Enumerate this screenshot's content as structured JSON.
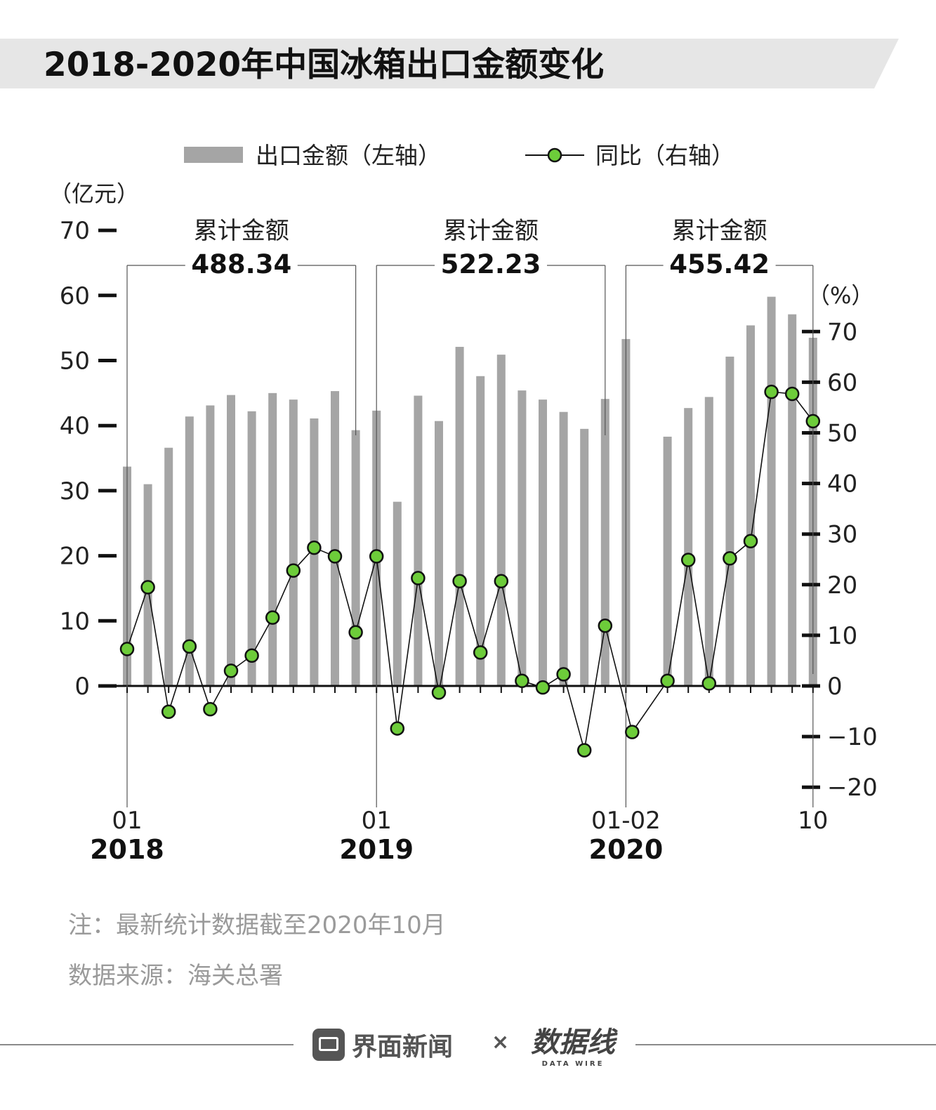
{
  "title": "2018-2020年中国冰箱出口金额变化",
  "colors": {
    "bar": "#a5a5a5",
    "marker": "#6dcc3a",
    "line": "#111111",
    "title_band": "#e6e6e6"
  },
  "legend": {
    "bar_label": "出口金额（左轴）",
    "line_label": "同比（右轴）"
  },
  "chart_data": {
    "type": "bar",
    "title": "2018-2020年中国冰箱出口金额变化",
    "left_axis": {
      "unit_label": "（亿元）",
      "ticks": [
        0,
        10,
        20,
        30,
        40,
        50,
        60,
        70
      ],
      "ylim": [
        0,
        70
      ]
    },
    "right_axis": {
      "unit_label": "（%）",
      "ticks": [
        -20,
        -10,
        0,
        10,
        20,
        30,
        40,
        50,
        60,
        70
      ],
      "ylim": [
        -20,
        70
      ]
    },
    "months": [
      "2018-01",
      "2018-02",
      "2018-03",
      "2018-04",
      "2018-05",
      "2018-06",
      "2018-07",
      "2018-08",
      "2018-09",
      "2018-10",
      "2018-11",
      "2018-12",
      "2019-01",
      "2019-02",
      "2019-03",
      "2019-04",
      "2019-05",
      "2019-06",
      "2019-07",
      "2019-08",
      "2019-09",
      "2019-10",
      "2019-11",
      "2019-12",
      "2020-01",
      "2020-02",
      "2020-03",
      "2020-04",
      "2020-05",
      "2020-06",
      "2020-07",
      "2020-08",
      "2020-09",
      "2020-10"
    ],
    "series": [
      {
        "name": "出口金额",
        "axis": "left",
        "kind": "bar",
        "values": [
          33.7,
          31.0,
          36.6,
          41.4,
          43.1,
          44.7,
          42.2,
          45.0,
          44.0,
          41.1,
          45.3,
          39.3,
          42.3,
          28.3,
          44.6,
          40.7,
          52.1,
          47.6,
          50.9,
          45.4,
          44.0,
          42.1,
          39.5,
          44.1,
          53.3,
          null,
          38.3,
          42.7,
          44.4,
          50.6,
          55.4,
          59.8,
          57.1,
          53.5
        ]
      },
      {
        "name": "同比",
        "axis": "right",
        "kind": "line",
        "values": [
          7.3,
          19.5,
          -5.1,
          7.8,
          -4.6,
          3.0,
          6.0,
          13.5,
          22.8,
          27.3,
          25.6,
          10.6,
          25.6,
          -8.4,
          21.3,
          -1.3,
          20.7,
          6.6,
          20.7,
          1.0,
          -0.3,
          2.3,
          -12.7,
          11.9,
          -9.1,
          null,
          1.0,
          24.9,
          0.5,
          25.2,
          28.6,
          58.1,
          57.7,
          52.3
        ]
      }
    ],
    "annotations": [
      {
        "label": "累计金额",
        "value": "488.34",
        "year": "2018"
      },
      {
        "label": "累计金额",
        "value": "522.23",
        "year": "2019"
      },
      {
        "label": "累计金额",
        "value": "455.42",
        "year": "2020"
      }
    ],
    "x_tick_labels": [
      "01",
      "01",
      "01-02",
      "10"
    ],
    "year_labels": [
      "2018",
      "2019",
      "2020"
    ]
  },
  "notes": {
    "note": "注：最新统计数据截至2020年10月",
    "source": "数据来源：海关总署"
  },
  "footer": {
    "brand_left": "界面新闻",
    "separator": "×",
    "brand_right": "数据线",
    "brand_right_sub": "DATA WIRE"
  }
}
